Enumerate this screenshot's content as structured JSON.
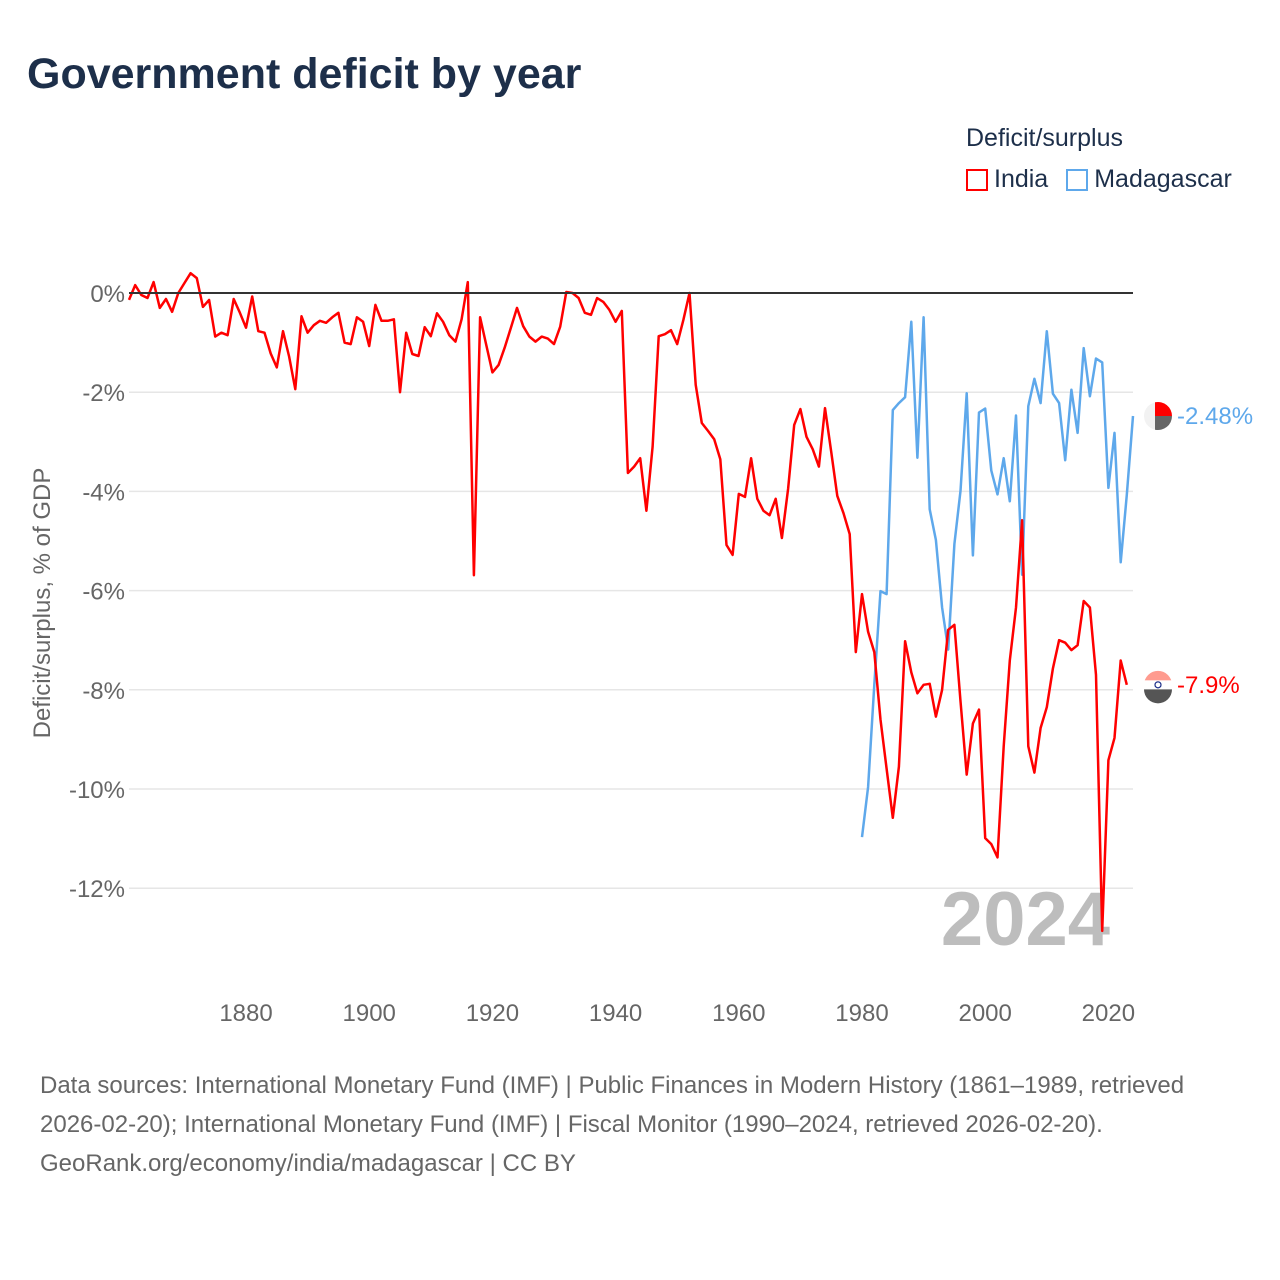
{
  "chart_data": {
    "type": "line",
    "title": "Government deficit by year",
    "ylabel": "Deficit/surplus, % of GDP",
    "xlabel": "",
    "ylim": [
      -13,
      0.6
    ],
    "xlim": [
      1861,
      2024
    ],
    "grid": true,
    "y_ticks": [
      0,
      -2,
      -4,
      -6,
      -8,
      -10,
      -12
    ],
    "y_tick_labels": [
      "0%",
      "-2%",
      "-4%",
      "-6%",
      "-8%",
      "-10%",
      "-12%"
    ],
    "x_ticks": [
      1880,
      1900,
      1920,
      1940,
      1960,
      1980,
      2000,
      2020
    ],
    "x_tick_labels": [
      "1880",
      "1900",
      "1920",
      "1940",
      "1960",
      "1980",
      "2000",
      "2020"
    ],
    "legend_title": "Deficit/surplus",
    "legend_position": "top-right",
    "year_label": "2024",
    "series": [
      {
        "name": "India",
        "color": "#ff0000",
        "start_year": 1861,
        "end_label": "-7.9%",
        "values": [
          -0.14,
          0.16,
          -0.04,
          -0.1,
          0.22,
          -0.3,
          -0.12,
          -0.38,
          0,
          0.2,
          0.4,
          0.3,
          -0.28,
          -0.14,
          -0.88,
          -0.8,
          -0.85,
          -0.12,
          -0.4,
          -0.7,
          -0.07,
          -0.77,
          -0.8,
          -1.22,
          -1.5,
          -0.77,
          -1.28,
          -1.94,
          -0.47,
          -0.8,
          -0.65,
          -0.56,
          -0.6,
          -0.49,
          -0.4,
          -1.0,
          -1.03,
          -0.49,
          -0.58,
          -1.07,
          -0.24,
          -0.56,
          -0.56,
          -0.53,
          -2.0,
          -0.8,
          -1.23,
          -1.27,
          -0.69,
          -0.87,
          -0.41,
          -0.58,
          -0.85,
          -0.98,
          -0.53,
          0.22,
          -5.69,
          -0.49,
          -1.05,
          -1.6,
          -1.45,
          -1.1,
          -0.7,
          -0.3,
          -0.67,
          -0.88,
          -0.98,
          -0.88,
          -0.92,
          -1.03,
          -0.68,
          0.02,
          0,
          -0.1,
          -0.4,
          -0.44,
          -0.1,
          -0.18,
          -0.34,
          -0.58,
          -0.36,
          -3.63,
          -3.5,
          -3.33,
          -4.39,
          -3.1,
          -0.87,
          -0.83,
          -0.75,
          -1.03,
          -0.54,
          0,
          -1.85,
          -2.62,
          -2.78,
          -2.95,
          -3.35,
          -5.08,
          -5.28,
          -4.05,
          -4.11,
          -3.33,
          -4.15,
          -4.39,
          -4.48,
          -4.15,
          -4.94,
          -3.95,
          -2.66,
          -2.34,
          -2.9,
          -3.15,
          -3.5,
          -2.32,
          -3.2,
          -4.09,
          -4.44,
          -4.86,
          -7.24,
          -6.07,
          -6.83,
          -7.24,
          -8.6,
          -9.59,
          -10.58,
          -9.55,
          -7.02,
          -7.65,
          -8.07,
          -7.9,
          -7.88,
          -8.54,
          -8.0,
          -6.79,
          -6.69,
          -8.23,
          -9.71,
          -8.68,
          -8.4,
          -10.99,
          -11.11,
          -11.38,
          -9.14,
          -7.41,
          -6.34,
          -4.58,
          -9.14,
          -9.67,
          -8.77,
          -8.35,
          -7.57,
          -7.0,
          -7.05,
          -7.2,
          -7.1,
          -6.21,
          -6.34,
          -7.7,
          -12.86,
          -9.42,
          -8.97,
          -7.41,
          -7.9
        ]
      },
      {
        "name": "Madagascar",
        "color": "#5ea8eb",
        "start_year": 1980,
        "end_label": "-2.48%",
        "values": [
          -10.97,
          -9.96,
          -7.9,
          -6.01,
          -6.07,
          -2.36,
          -2.22,
          -2.1,
          -0.58,
          -3.32,
          -0.49,
          -4.36,
          -4.98,
          -6.34,
          -7.19,
          -5.06,
          -3.99,
          -2.02,
          -5.29,
          -2.41,
          -2.33,
          -3.58,
          -4.06,
          -3.33,
          -4.2,
          -2.47,
          -5.68,
          -2.28,
          -1.73,
          -2.22,
          -0.77,
          -2.03,
          -2.22,
          -3.37,
          -1.95,
          -2.82,
          -1.11,
          -2.08,
          -1.32,
          -1.4,
          -3.93,
          -2.82,
          -5.43,
          -4.07,
          -2.48
        ]
      }
    ]
  },
  "footer": {
    "sources": "Data sources: International Monetary Fund (IMF) | Public Finances in Modern History (1861–1989, retrieved 2026-02-20); International Monetary Fund (IMF) | Fiscal Monitor (1990–2024, retrieved 2026-02-20).",
    "credit": "GeoRank.org/economy/india/madagascar | CC BY"
  }
}
